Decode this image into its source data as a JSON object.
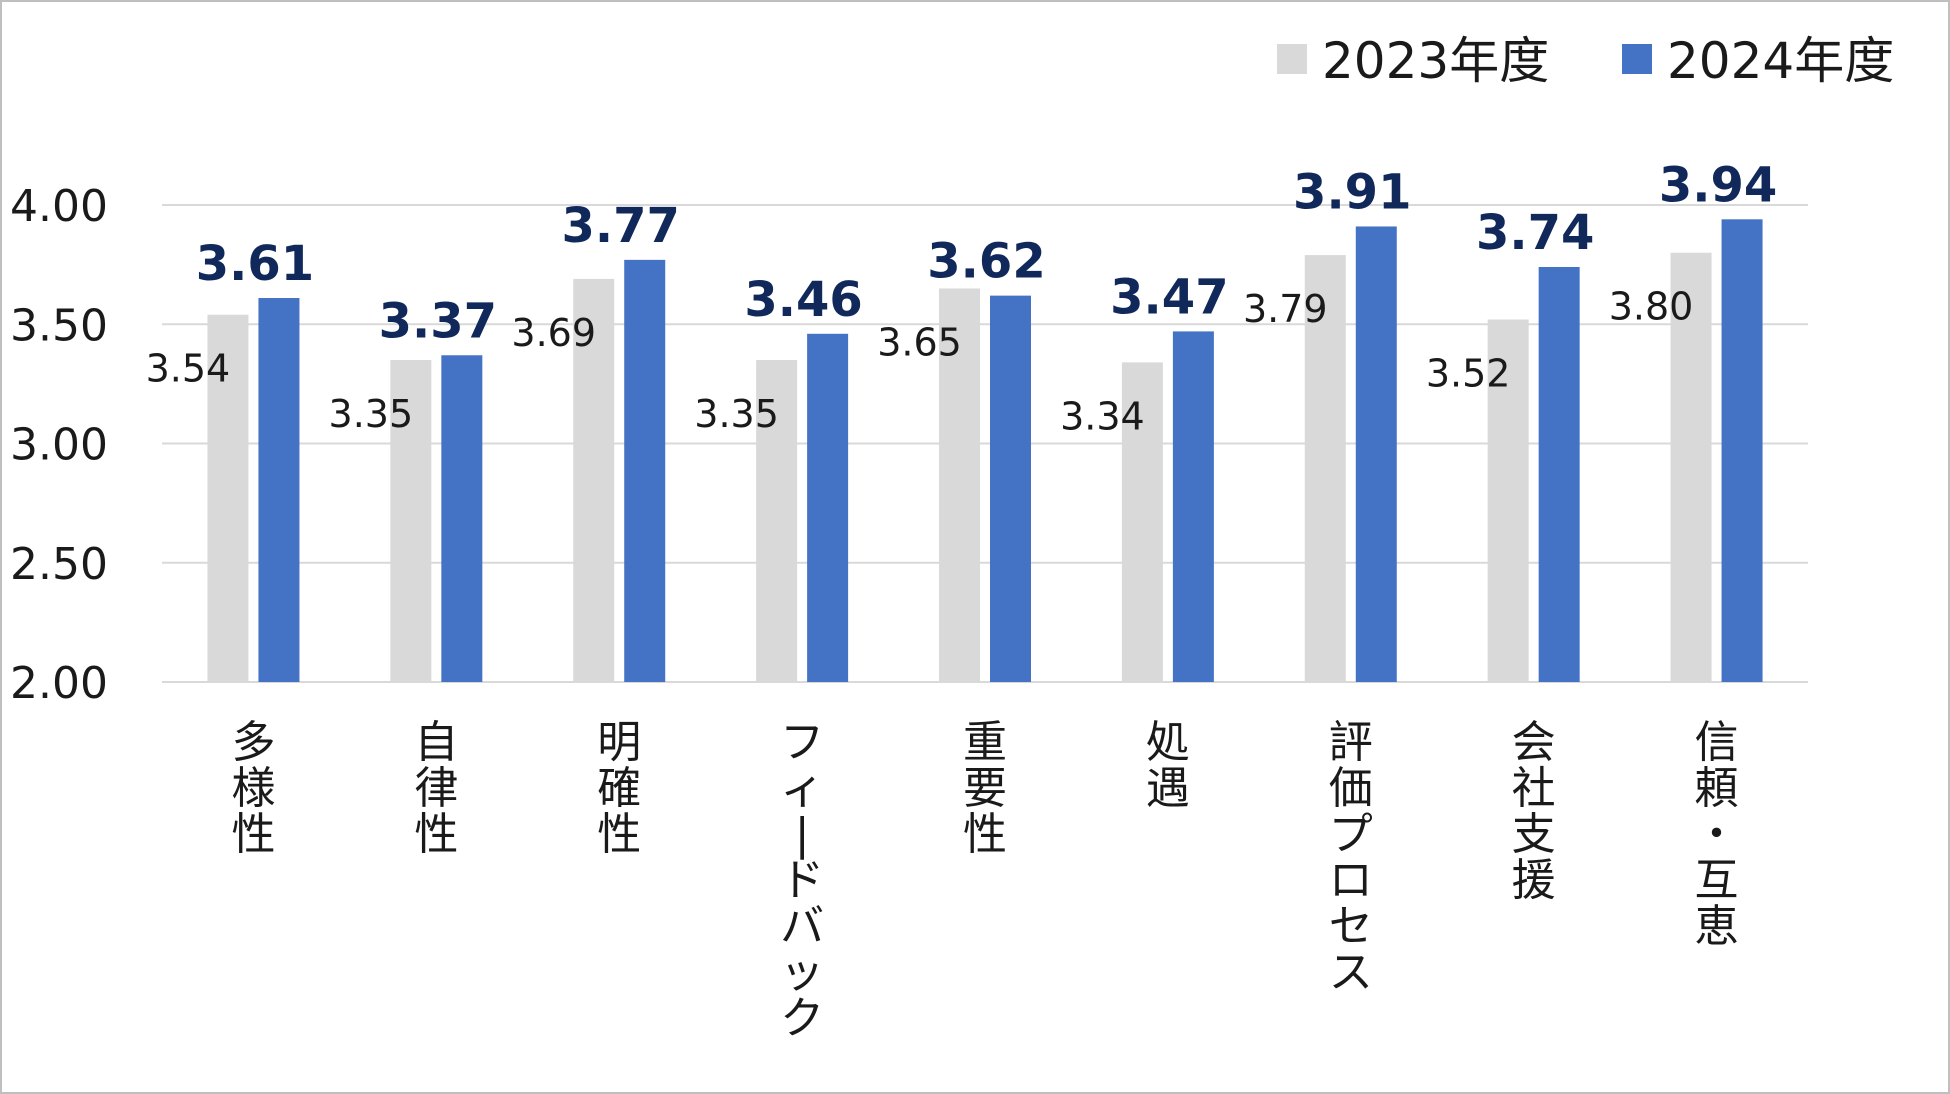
{
  "chart_data": {
    "type": "bar",
    "categories": [
      "多様性",
      "自律性",
      "明確性",
      "フィードバック",
      "重要性",
      "処遇",
      "評価プロセス",
      "会社支援",
      "信頼・互恵"
    ],
    "series": [
      {
        "name": "2023年度",
        "color": "#d9d9d9",
        "values": [
          3.54,
          3.35,
          3.69,
          3.35,
          3.65,
          3.34,
          3.79,
          3.52,
          3.8
        ],
        "labels": [
          "3.54",
          "3.35",
          "3.69",
          "3.35",
          "3.65",
          "3.34",
          "3.79",
          "3.52",
          "3.80"
        ]
      },
      {
        "name": "2024年度",
        "color": "#4472c4",
        "values": [
          3.61,
          3.37,
          3.77,
          3.46,
          3.62,
          3.47,
          3.91,
          3.74,
          3.94
        ],
        "labels": [
          "3.61",
          "3.37",
          "3.77",
          "3.46",
          "3.62",
          "3.47",
          "3.91",
          "3.74",
          "3.94"
        ]
      }
    ],
    "ylim": [
      2.0,
      4.0
    ],
    "yticks": [
      2.0,
      2.5,
      3.0,
      3.5,
      4.0
    ],
    "ytick_labels": [
      "2.00",
      "2.50",
      "3.00",
      "3.50",
      "4.00"
    ],
    "grid": true,
    "legend": "top-right"
  }
}
